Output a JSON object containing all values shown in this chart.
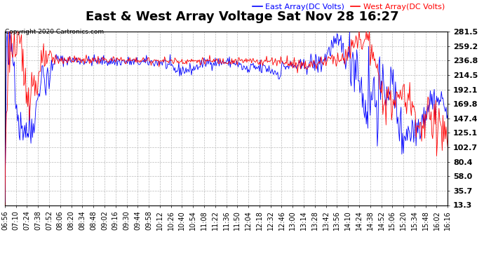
{
  "title": "East & West Array Voltage Sat Nov 28 16:27",
  "copyright": "Copyright 2020 Cartronics.com",
  "legend_east": "East Array(DC Volts)",
  "legend_west": "West Array(DC Volts)",
  "east_color": "blue",
  "west_color": "red",
  "background_color": "#ffffff",
  "grid_color": "#bbbbbb",
  "yticks": [
    13.3,
    35.7,
    58.0,
    80.4,
    102.7,
    125.1,
    147.4,
    169.8,
    192.1,
    214.5,
    236.8,
    259.2,
    281.5
  ],
  "ymin": 13.3,
  "ymax": 281.5,
  "xtick_labels": [
    "06:56",
    "07:10",
    "07:24",
    "07:38",
    "07:52",
    "08:06",
    "08:20",
    "08:34",
    "08:48",
    "09:02",
    "09:16",
    "09:30",
    "09:44",
    "09:58",
    "10:12",
    "10:26",
    "10:40",
    "10:54",
    "11:08",
    "11:22",
    "11:36",
    "11:50",
    "12:04",
    "12:18",
    "12:32",
    "12:46",
    "13:00",
    "13:14",
    "13:28",
    "13:42",
    "13:56",
    "14:10",
    "14:24",
    "14:38",
    "14:52",
    "15:06",
    "15:20",
    "15:34",
    "15:48",
    "16:02",
    "16:16"
  ],
  "title_fontsize": 13,
  "label_fontsize": 7,
  "copyright_fontsize": 6.5,
  "legend_fontsize": 8,
  "ytick_fontsize": 8
}
